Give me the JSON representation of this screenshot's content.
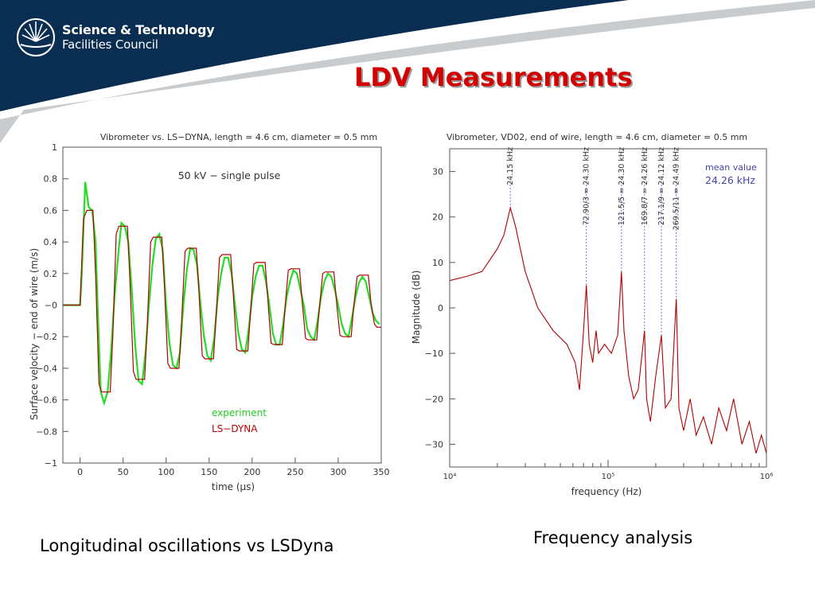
{
  "branding": {
    "logo_line1": "Science & Technology",
    "logo_line2": "Facilities Council",
    "logo_icon": "sunburst-logo-icon",
    "banner_color": "#0a2d52",
    "swoosh_color": "#c9ccce"
  },
  "slide": {
    "title": "LDV Measurements",
    "title_color": "#d40000"
  },
  "captions": {
    "left": "Longitudinal oscillations vs LSDyna",
    "right": "Frequency analysis"
  },
  "chart_data": [
    {
      "type": "line",
      "title": "Vibrometer vs. LS−DYNA, length = 4.6 cm, diameter = 0.5 mm",
      "xlabel": "time (μs)",
      "ylabel": "Surface velocity − end of wire (m/s)",
      "xlim": [
        -20,
        350
      ],
      "ylim": [
        -1,
        1
      ],
      "xticks": [
        0,
        50,
        100,
        150,
        200,
        250,
        300,
        350
      ],
      "xtick_labels": [
        "0",
        "50",
        "100",
        "150",
        "200",
        "250",
        "300",
        "350"
      ],
      "yticks": [
        -1,
        -0.8,
        -0.6,
        -0.4,
        -0.2,
        0,
        0.2,
        0.4,
        0.6,
        0.8,
        1
      ],
      "ytick_labels": [
        "−1",
        "−0.8",
        "−0.6",
        "−0.4",
        "−0.2",
        "−0",
        "0.2",
        "0.4",
        "0.6",
        "0.8",
        "1"
      ],
      "annotation": "50 kV − single pulse",
      "legend": [
        "experiment",
        "LS−DYNA"
      ],
      "legend_position": "bottom-center",
      "series": [
        {
          "name": "experiment",
          "color": "#22dd22",
          "x": [
            -20,
            0,
            2,
            6,
            10,
            14,
            18,
            21,
            24,
            28,
            32,
            36,
            40,
            44,
            48,
            52,
            56,
            60,
            64,
            68,
            72,
            76,
            80,
            84,
            88,
            92,
            96,
            100,
            104,
            108,
            112,
            116,
            120,
            124,
            128,
            132,
            136,
            140,
            144,
            148,
            152,
            156,
            160,
            164,
            168,
            172,
            176,
            180,
            184,
            188,
            192,
            196,
            200,
            204,
            208,
            212,
            216,
            220,
            224,
            228,
            232,
            236,
            240,
            244,
            248,
            252,
            256,
            260,
            264,
            268,
            272,
            276,
            280,
            284,
            288,
            292,
            296,
            300,
            304,
            308,
            312,
            316,
            320,
            324,
            328,
            332,
            336,
            340,
            344,
            348
          ],
          "y": [
            0.0,
            0.0,
            0.2,
            0.78,
            0.62,
            0.6,
            0.4,
            -0.1,
            -0.55,
            -0.62,
            -0.55,
            -0.3,
            0.05,
            0.3,
            0.52,
            0.5,
            0.4,
            0.1,
            -0.25,
            -0.48,
            -0.5,
            -0.3,
            0.0,
            0.25,
            0.42,
            0.45,
            0.35,
            0.0,
            -0.25,
            -0.38,
            -0.4,
            -0.3,
            0.0,
            0.22,
            0.36,
            0.35,
            0.25,
            0.0,
            -0.2,
            -0.32,
            -0.35,
            -0.2,
            0.05,
            0.2,
            0.3,
            0.3,
            0.2,
            0.0,
            -0.18,
            -0.28,
            -0.3,
            -0.15,
            0.05,
            0.18,
            0.25,
            0.25,
            0.15,
            0.0,
            -0.18,
            -0.25,
            -0.25,
            -0.12,
            0.05,
            0.15,
            0.22,
            0.2,
            0.1,
            0.0,
            -0.15,
            -0.2,
            -0.22,
            -0.1,
            0.05,
            0.15,
            0.2,
            0.18,
            0.1,
            0.0,
            -0.12,
            -0.18,
            -0.2,
            -0.08,
            0.05,
            0.14,
            0.18,
            0.15,
            0.05,
            -0.05,
            -0.1,
            -0.12
          ]
        },
        {
          "name": "LS−DYNA",
          "color": "#b00000",
          "x": [
            -20,
            0,
            4,
            8,
            15,
            18,
            22,
            25,
            35,
            38,
            42,
            45,
            55,
            58,
            62,
            65,
            75,
            78,
            82,
            85,
            95,
            98,
            102,
            105,
            115,
            118,
            122,
            125,
            135,
            138,
            142,
            145,
            155,
            158,
            162,
            165,
            175,
            178,
            182,
            185,
            195,
            198,
            202,
            205,
            215,
            218,
            222,
            225,
            235,
            238,
            242,
            245,
            255,
            258,
            262,
            265,
            275,
            278,
            282,
            285,
            295,
            298,
            302,
            305,
            315,
            318,
            322,
            325,
            335,
            338,
            342,
            345,
            350
          ],
          "y": [
            0.0,
            0.0,
            0.55,
            0.6,
            0.6,
            0.2,
            -0.5,
            -0.55,
            -0.55,
            -0.2,
            0.45,
            0.5,
            0.5,
            0.15,
            -0.42,
            -0.47,
            -0.47,
            -0.15,
            0.4,
            0.43,
            0.43,
            0.12,
            -0.37,
            -0.4,
            -0.4,
            -0.1,
            0.34,
            0.36,
            0.36,
            0.1,
            -0.32,
            -0.34,
            -0.34,
            -0.08,
            0.3,
            0.32,
            0.32,
            0.07,
            -0.28,
            -0.29,
            -0.29,
            -0.05,
            0.26,
            0.27,
            0.27,
            0.05,
            -0.24,
            -0.25,
            -0.25,
            -0.03,
            0.22,
            0.23,
            0.23,
            0.03,
            -0.21,
            -0.22,
            -0.22,
            -0.02,
            0.2,
            0.21,
            0.21,
            0.02,
            -0.19,
            -0.2,
            -0.2,
            -0.01,
            0.18,
            0.19,
            0.19,
            0.02,
            -0.12,
            -0.14,
            -0.14
          ]
        }
      ]
    },
    {
      "type": "line",
      "title": "Vibrometer, VD02, end of wire, length = 4.6 cm, diameter = 0.5 mm",
      "xlabel": "frequency (Hz)",
      "ylabel": "Magnitude (dB)",
      "x_scale": "log",
      "xlim": [
        10000,
        1000000
      ],
      "ylim": [
        -35,
        35
      ],
      "xticks": [
        10000,
        100000,
        1000000
      ],
      "xtick_labels": [
        "10⁴",
        "10⁵",
        "10⁶"
      ],
      "yticks": [
        -30,
        -20,
        -10,
        0,
        10,
        20,
        30
      ],
      "ytick_labels": [
        "−30",
        "−20",
        "−10",
        "0",
        "10",
        "20",
        "30"
      ],
      "annotation_title": "mean value",
      "annotation_value": "24.26 kHz",
      "peak_labels": [
        {
          "x": 24150,
          "text": "24.15 kHz"
        },
        {
          "x": 72900,
          "text": "72.90/3 = 24.30 kHz"
        },
        {
          "x": 121500,
          "text": "121.5/5 = 24.30 kHz"
        },
        {
          "x": 169800,
          "text": "169.8/7 = 24.26 kHz"
        },
        {
          "x": 217100,
          "text": "217.1/9 = 24.12 kHz"
        },
        {
          "x": 269500,
          "text": "269.5/11 = 24.49 kHz"
        }
      ],
      "series": [
        {
          "name": "",
          "color": "#b00000",
          "x": [
            10000,
            13000,
            16000,
            20000,
            22000,
            24150,
            26000,
            30000,
            36000,
            45000,
            55000,
            62000,
            66000,
            70000,
            72900,
            76000,
            80000,
            84000,
            87000,
            95000,
            105000,
            115000,
            121500,
            126000,
            135000,
            145000,
            155000,
            169800,
            175000,
            185000,
            200000,
            217100,
            230000,
            250000,
            269500,
            280000,
            300000,
            330000,
            360000,
            400000,
            450000,
            500000,
            560000,
            620000,
            700000,
            780000,
            860000,
            930000,
            1000000
          ],
          "y": [
            6,
            7,
            8,
            13,
            16,
            22,
            18,
            8,
            0,
            -5,
            -8,
            -12,
            -18,
            -5,
            5,
            -8,
            -12,
            -5,
            -10,
            -8,
            -10,
            -6,
            8,
            -5,
            -15,
            -20,
            -18,
            -5,
            -20,
            -25,
            -15,
            -6,
            -22,
            -20,
            2,
            -22,
            -27,
            -20,
            -28,
            -24,
            -30,
            -22,
            -27,
            -20,
            -30,
            -25,
            -32,
            -28,
            -32
          ]
        }
      ]
    }
  ]
}
